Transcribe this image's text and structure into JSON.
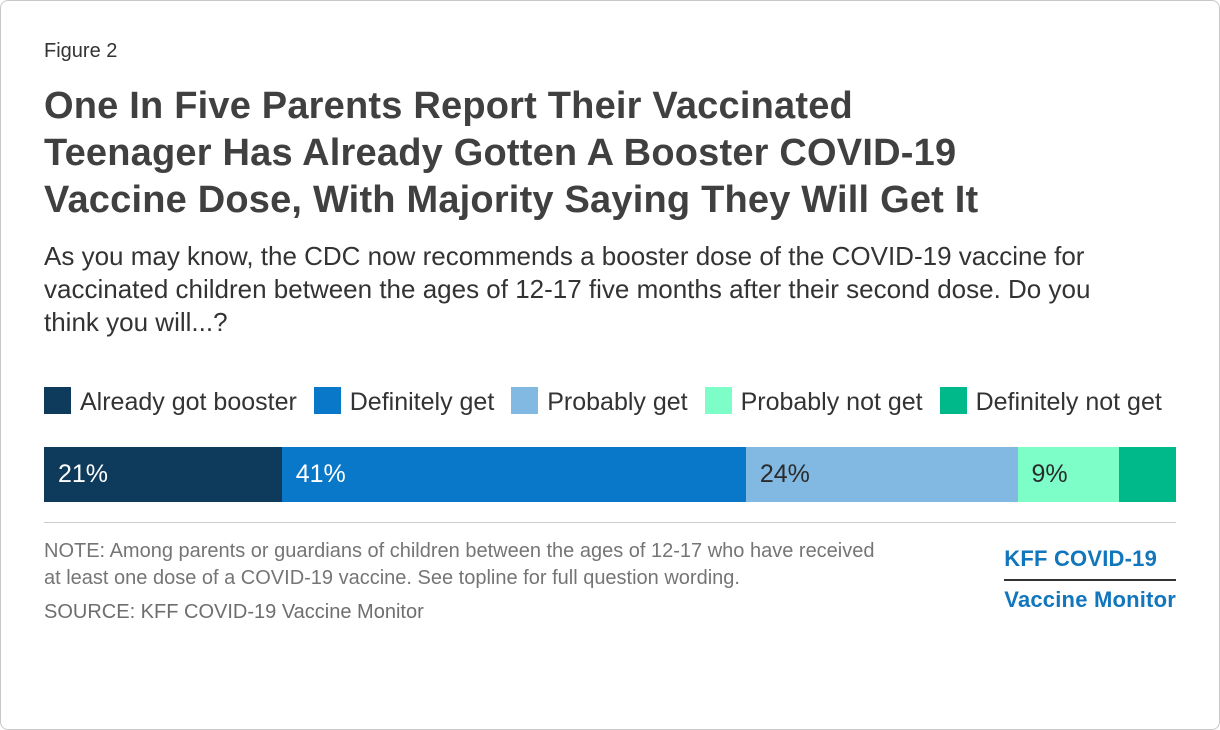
{
  "figure_label": "Figure 2",
  "title_lines": [
    "One In Five Parents Report Their Vaccinated",
    "Teenager Has Already Gotten A Booster COVID-19",
    "Vaccine Dose, With Majority Saying They Will Get It"
  ],
  "subtitle_lines": [
    "As you may know, the CDC now recommends a booster dose of the COVID-19 vaccine for",
    "vaccinated children between the ages of 12-17 five months after their second dose. Do you",
    "think you will...?"
  ],
  "chart_data": {
    "type": "bar",
    "variant": "horizontal-stacked",
    "title": "One In Five Parents Report Their Vaccinated Teenager Has Already Gotten A Booster COVID-19 Vaccine Dose, With Majority Saying They Will Get It",
    "question": "As you may know, the CDC now recommends a booster dose of the COVID-19 vaccine for vaccinated children between the ages of 12-17 five months after their second dose. Do you think you will...?",
    "categories": [
      "Already got booster",
      "Definitely get",
      "Probably get",
      "Probably not get",
      "Definitely not get"
    ],
    "values": [
      21,
      41,
      24,
      9,
      5
    ],
    "xlim": [
      0,
      100
    ],
    "legend_position": "top",
    "data_labels": true,
    "segments": [
      {
        "label": "Already got booster",
        "value": 21,
        "display": "21%",
        "color": "#0e3a5b",
        "text_color": "#ffffff"
      },
      {
        "label": "Definitely get",
        "value": 41,
        "display": "41%",
        "color": "#0978c8",
        "text_color": "#ffffff"
      },
      {
        "label": "Probably get",
        "value": 24,
        "display": "24%",
        "color": "#81b9e3",
        "text_color": "#2b2b2b"
      },
      {
        "label": "Probably not get",
        "value": 9,
        "display": "9%",
        "color": "#7dfec9",
        "text_color": "#2b2b2b"
      },
      {
        "label": "Definitely not get",
        "value": 5,
        "display": "",
        "color": "#00b98a",
        "text_color": "#ffffff"
      }
    ]
  },
  "note_lines": [
    "NOTE: Among parents or guardians of children between the ages of 12-17 who have received",
    "at least one dose of a COVID-19 vaccine. See topline for full question wording."
  ],
  "source": "SOURCE: KFF COVID-19 Vaccine Monitor",
  "logo": {
    "line1": "KFF COVID-19",
    "line2": "Vaccine Monitor",
    "color": "#1276bd"
  }
}
